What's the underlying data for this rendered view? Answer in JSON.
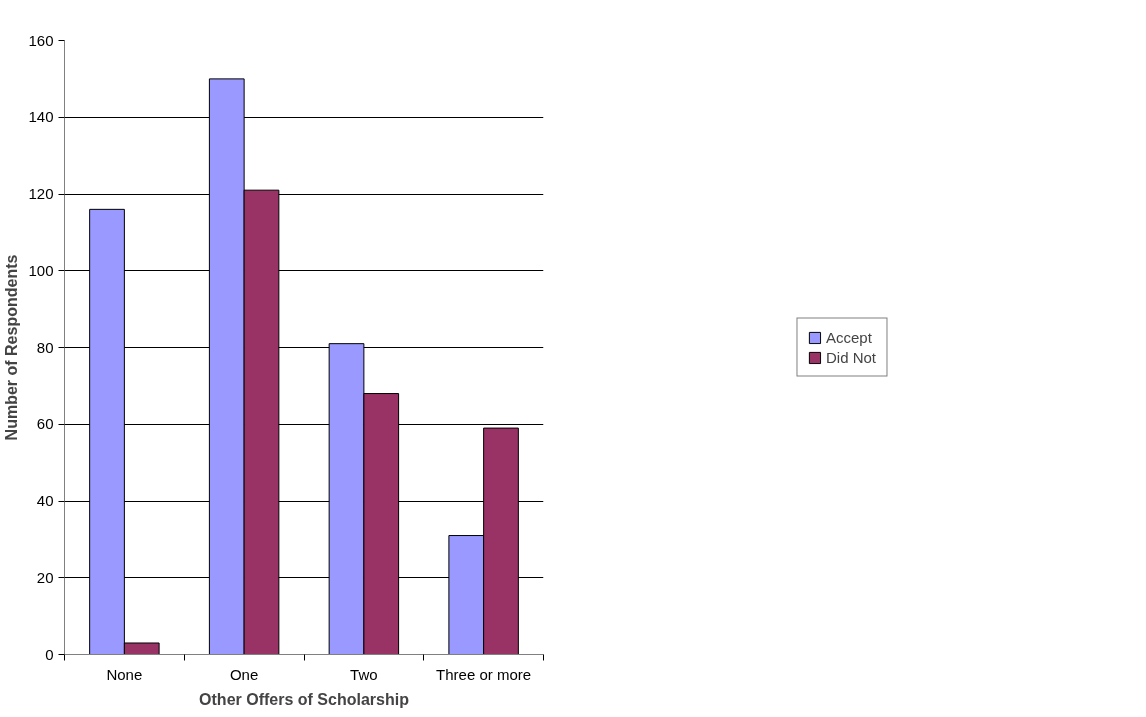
{
  "chart_data": {
    "type": "bar",
    "xlabel": "Other Offers of Scholarship",
    "ylabel": "Number of Respondents",
    "categories": [
      "None",
      "One",
      "Two",
      "Three or more"
    ],
    "series": [
      {
        "name": "Accept",
        "color": "#9999ff",
        "values": [
          116,
          150,
          81,
          31
        ]
      },
      {
        "name": "Did Not",
        "color": "#993366",
        "values": [
          3,
          121,
          68,
          59
        ]
      }
    ],
    "ylim": [
      0,
      160
    ],
    "yticks": [
      0,
      20,
      40,
      60,
      80,
      100,
      120,
      140,
      160
    ],
    "grid": "y",
    "legend": "right"
  }
}
